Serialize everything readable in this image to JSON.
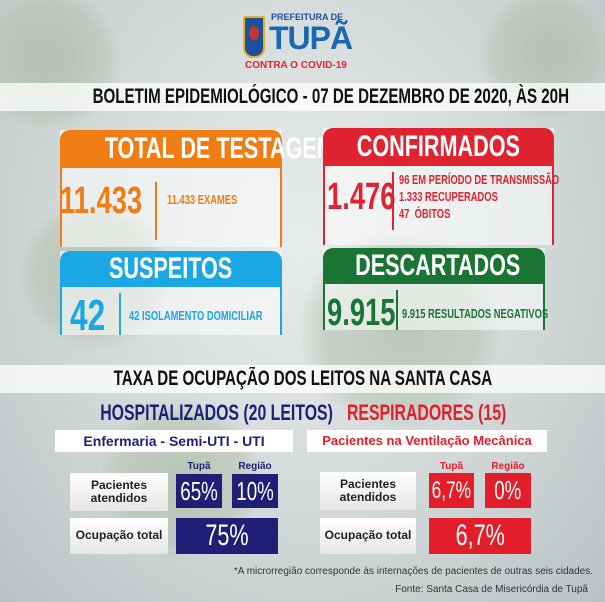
{
  "header": {
    "logo_top": "PREFEITURA DE",
    "logo_city": "TUPÃ",
    "logo_tagline": "CONTRA O COVID-19",
    "title": "BOLETIM EPIDEMIOLÓGICO - 07 DE DEZEMBRO DE 2020, ÀS 20H"
  },
  "cards": {
    "testagem": {
      "title": "TOTAL DE TESTAGEM",
      "value": "11.433",
      "details": [
        "11.433 EXAMES"
      ],
      "color": "#f07d14"
    },
    "confirmados": {
      "title": "CONFIRMADOS",
      "value": "1.476",
      "details": [
        "96 EM PERÍODO DE TRANSMISSÃO",
        "1.333 RECUPERADOS",
        "47  ÓBITOS"
      ],
      "color": "#e02330"
    },
    "suspeitos": {
      "title": "SUSPEITOS",
      "value": "42",
      "details": [
        "42 ISOLAMENTO DOMICILIAR"
      ],
      "color": "#1ba6e4"
    },
    "descartados": {
      "title": "DESCARTADOS",
      "value": "9.915",
      "details": [
        "9.915 RESULTADOS NEGATIVOS"
      ],
      "color": "#1a7434"
    }
  },
  "occupancy": {
    "title": "TAXA DE OCUPAÇÃO DOS LEITOS NA SANTA CASA",
    "hospitalizados": {
      "title": "HOSPITALIZADOS (20 LEITOS)",
      "subtitle": "Enfermaria - Semi-UTI - UTI",
      "col_tupa": "Tupã",
      "col_regiao": "Região",
      "row1_label": "Pacientes atendidos",
      "tupa": "65%",
      "regiao": "10%",
      "row2_label": "Ocupação total",
      "total": "75%",
      "color": "#1f1f78"
    },
    "respiradores": {
      "title": "RESPIRADORES (15)",
      "subtitle": "Pacientes na Ventilação Mecânica",
      "col_tupa": "Tupã",
      "col_regiao": "Região",
      "row1_label": "Pacientes atendidos",
      "tupa": "6,7%",
      "regiao": "0%",
      "row2_label": "Ocupação total",
      "total": "6,7%",
      "color": "#e41d2a"
    }
  },
  "footer": {
    "note": "*A microrregião corresponde às internações de pacientes de outras seis cidades.",
    "source": "Fonte: Santa Casa de Misericórdia de Tupã"
  }
}
